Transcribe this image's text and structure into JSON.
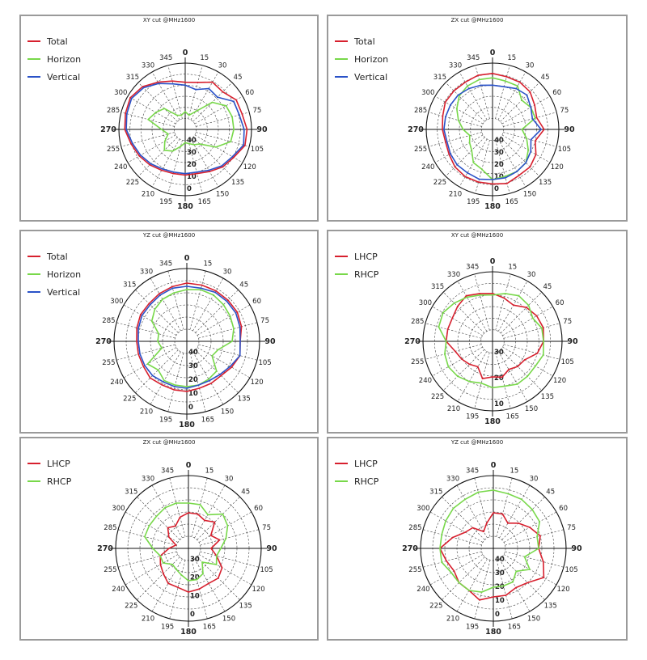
{
  "colors": {
    "red": "#d7202e",
    "green": "#78d84a",
    "blue": "#2a52c8",
    "grid": "#444444",
    "border": "#9a9a9a"
  },
  "chart_data": [
    {
      "type": "line",
      "title": "XY cut @MHz1600",
      "angular_ticks": [
        "0",
        "15",
        "30",
        "45",
        "60",
        "75",
        "90",
        "105",
        "120",
        "135",
        "150",
        "165",
        "180",
        "195",
        "210",
        "225",
        "240",
        "255",
        "270",
        "285",
        "300",
        "315",
        "330",
        "345"
      ],
      "radial_labels": [
        "40",
        "30",
        "20",
        "10",
        "0"
      ],
      "series": [
        {
          "name": "Total",
          "color": "#d7202e",
          "angles": [
            0,
            15,
            30,
            45,
            60,
            75,
            90,
            105,
            120,
            135,
            150,
            165,
            180,
            195,
            210,
            225,
            240,
            255,
            270,
            285,
            300,
            315,
            330,
            345
          ],
          "values": [
            32,
            33,
            37,
            36,
            40,
            40,
            42,
            42,
            38,
            36,
            33,
            31,
            31,
            31,
            32,
            34,
            36,
            38,
            41,
            42,
            43,
            41,
            37,
            34
          ]
        },
        {
          "name": "Horizon",
          "color": "#78d84a",
          "angles": [
            0,
            15,
            30,
            45,
            60,
            75,
            90,
            105,
            120,
            135,
            150,
            165,
            180,
            195,
            210,
            225,
            240,
            255,
            270,
            285,
            300,
            315,
            330,
            345
          ],
          "values": [
            12,
            10,
            14,
            26,
            32,
            33,
            33,
            32,
            24,
            14,
            12,
            10,
            9,
            12,
            17,
            20,
            16,
            12,
            16,
            26,
            23,
            20,
            11,
            10
          ]
        },
        {
          "name": "Vertical",
          "color": "#2a52c8",
          "angles": [
            0,
            15,
            30,
            45,
            60,
            75,
            90,
            105,
            120,
            135,
            150,
            165,
            180,
            195,
            210,
            225,
            240,
            255,
            270,
            285,
            300,
            315,
            330,
            345
          ],
          "values": [
            30,
            28,
            32,
            31,
            38,
            38,
            40,
            41,
            37,
            35,
            32,
            30,
            30,
            30,
            31,
            33,
            35,
            37,
            40,
            41,
            42,
            40,
            36,
            32
          ]
        }
      ]
    },
    {
      "type": "line",
      "title": "ZX cut @MHz1600",
      "angular_ticks": [
        "0",
        "15",
        "30",
        "45",
        "60",
        "75",
        "90",
        "105",
        "120",
        "135",
        "150",
        "165",
        "180",
        "195",
        "210",
        "225",
        "240",
        "255",
        "270",
        "285",
        "300",
        "315",
        "330",
        "345"
      ],
      "radial_labels": [
        "40",
        "30",
        "20",
        "10",
        "0"
      ],
      "series": [
        {
          "name": "Total",
          "color": "#d7202e",
          "angles": [
            0,
            15,
            30,
            45,
            60,
            75,
            90,
            105,
            120,
            135,
            150,
            165,
            180,
            195,
            210,
            225,
            240,
            255,
            270,
            285,
            300,
            315,
            330,
            345
          ],
          "values": [
            38,
            37,
            37,
            36,
            33,
            31,
            35,
            30,
            34,
            36,
            36,
            38,
            37,
            37,
            37,
            36,
            34,
            33,
            34,
            35,
            37,
            37,
            37,
            38
          ]
        },
        {
          "name": "Horizon",
          "color": "#78d84a",
          "angles": [
            0,
            15,
            30,
            45,
            60,
            75,
            90,
            105,
            120,
            135,
            150,
            165,
            180,
            195,
            210,
            225,
            240,
            255,
            270,
            285,
            300,
            315,
            330,
            345
          ],
          "values": [
            35,
            34,
            34,
            28,
            30,
            30,
            20,
            24,
            28,
            32,
            33,
            33,
            34,
            28,
            26,
            20,
            18,
            16,
            20,
            24,
            28,
            32,
            34,
            35
          ]
        },
        {
          "name": "Vertical",
          "color": "#2a52c8",
          "angles": [
            0,
            15,
            30,
            45,
            60,
            75,
            90,
            105,
            120,
            135,
            150,
            165,
            180,
            195,
            210,
            225,
            240,
            255,
            270,
            285,
            300,
            315,
            330,
            345
          ],
          "values": [
            30,
            30,
            32,
            33,
            30,
            28,
            33,
            27,
            30,
            32,
            33,
            34,
            34,
            35,
            34,
            34,
            33,
            32,
            33,
            33,
            33,
            33,
            32,
            31
          ]
        }
      ]
    },
    {
      "type": "line",
      "title": "YZ cut @MHz1600",
      "angular_ticks": [
        "0",
        "15",
        "30",
        "45",
        "60",
        "75",
        "90",
        "105",
        "120",
        "135",
        "150",
        "165",
        "180",
        "195",
        "210",
        "225",
        "240",
        "255",
        "270",
        "285",
        "300",
        "315",
        "330",
        "345"
      ],
      "radial_labels": [
        "40",
        "30",
        "20",
        "10",
        "0"
      ],
      "series": [
        {
          "name": "Total",
          "color": "#d7202e",
          "angles": [
            0,
            15,
            30,
            45,
            60,
            75,
            90,
            105,
            120,
            135,
            150,
            165,
            180,
            195,
            210,
            225,
            240,
            255,
            270,
            285,
            300,
            315,
            330,
            345
          ],
          "values": [
            36,
            36,
            36,
            36,
            36,
            35,
            33,
            34,
            32,
            30,
            30,
            30,
            31,
            31,
            31,
            32,
            31,
            31,
            31,
            32,
            33,
            33,
            34,
            35
          ]
        },
        {
          "name": "Horizon",
          "color": "#78d84a",
          "angles": [
            0,
            15,
            30,
            45,
            60,
            75,
            90,
            105,
            120,
            135,
            150,
            165,
            180,
            195,
            210,
            225,
            240,
            255,
            270,
            285,
            300,
            315,
            330,
            345
          ],
          "values": [
            32,
            33,
            33,
            32,
            31,
            30,
            28,
            20,
            18,
            26,
            27,
            28,
            28,
            28,
            28,
            25,
            28,
            16,
            18,
            18,
            25,
            28,
            30,
            31
          ]
        },
        {
          "name": "Vertical",
          "color": "#2a52c8",
          "angles": [
            0,
            15,
            30,
            45,
            60,
            75,
            90,
            105,
            120,
            135,
            150,
            165,
            180,
            195,
            210,
            225,
            240,
            255,
            270,
            285,
            300,
            315,
            330,
            345
          ],
          "values": [
            34,
            34,
            35,
            35,
            35,
            34,
            33,
            34,
            31,
            29,
            28,
            28,
            29,
            29,
            29,
            30,
            30,
            30,
            30,
            31,
            32,
            32,
            33,
            34
          ]
        }
      ]
    },
    {
      "type": "line",
      "title": "XY cut @MHz1600",
      "angular_ticks": [
        "0",
        "15",
        "30",
        "45",
        "60",
        "75",
        "90",
        "105",
        "120",
        "135",
        "150",
        "165",
        "180",
        "195",
        "210",
        "225",
        "240",
        "255",
        "270",
        "285",
        "300",
        "315",
        "330",
        "345"
      ],
      "radial_labels": [
        "30",
        "20",
        "10"
      ],
      "series": [
        {
          "name": "LHCP",
          "color": "#d7202e",
          "angles": [
            0,
            15,
            30,
            45,
            60,
            75,
            90,
            105,
            120,
            135,
            150,
            165,
            180,
            195,
            210,
            225,
            240,
            255,
            270,
            285,
            300,
            315,
            330,
            345
          ],
          "values": [
            31,
            29,
            27,
            31,
            33,
            34,
            33,
            30,
            24,
            23,
            21,
            24,
            23,
            25,
            19,
            21,
            23,
            25,
            30,
            30,
            30,
            32,
            34,
            32
          ]
        },
        {
          "name": "RHCP",
          "color": "#78d84a",
          "angles": [
            0,
            15,
            30,
            45,
            60,
            75,
            90,
            105,
            120,
            135,
            150,
            165,
            180,
            195,
            210,
            225,
            240,
            255,
            270,
            285,
            300,
            315,
            330,
            345
          ],
          "values": [
            30,
            32,
            34,
            33,
            30,
            33,
            33,
            34,
            32,
            32,
            32,
            30,
            30,
            28,
            30,
            32,
            33,
            32,
            30,
            36,
            37,
            35,
            33,
            31
          ]
        }
      ]
    },
    {
      "type": "line",
      "title": "ZX cut @MHz1600",
      "angular_ticks": [
        "0",
        "15",
        "30",
        "45",
        "60",
        "75",
        "90",
        "105",
        "120",
        "135",
        "150",
        "165",
        "180",
        "195",
        "210",
        "225",
        "240",
        "255",
        "270",
        "285",
        "300",
        "315",
        "330",
        "345"
      ],
      "radial_labels": [
        "30",
        "20",
        "10",
        "0"
      ],
      "series": [
        {
          "name": "LHCP",
          "color": "#d7202e",
          "angles": [
            0,
            15,
            30,
            45,
            60,
            75,
            90,
            105,
            120,
            135,
            150,
            165,
            180,
            195,
            210,
            225,
            240,
            255,
            270,
            285,
            300,
            315,
            330,
            345
          ],
          "values": [
            22,
            22,
            20,
            23,
            16,
            20,
            14,
            18,
            24,
            26,
            25,
            26,
            27,
            25,
            25,
            22,
            20,
            18,
            12,
            8,
            14,
            18,
            16,
            20
          ]
        },
        {
          "name": "RHCP",
          "color": "#78d84a",
          "angles": [
            0,
            15,
            30,
            45,
            60,
            75,
            90,
            105,
            120,
            135,
            150,
            165,
            180,
            195,
            210,
            225,
            240,
            255,
            270,
            285,
            300,
            315,
            330,
            345
          ],
          "values": [
            28,
            28,
            24,
            30,
            28,
            24,
            20,
            18,
            20,
            12,
            18,
            20,
            20,
            17,
            15,
            14,
            18,
            18,
            22,
            28,
            28,
            28,
            29,
            29
          ]
        }
      ]
    },
    {
      "type": "line",
      "title": "YZ cut @MHz1600",
      "angular_ticks": [
        "0",
        "15",
        "30",
        "45",
        "60",
        "75",
        "90",
        "105",
        "120",
        "135",
        "150",
        "165",
        "180",
        "195",
        "210",
        "225",
        "240",
        "255",
        "270",
        "285",
        "300",
        "315",
        "330",
        "345"
      ],
      "radial_labels": [
        "40",
        "30",
        "20",
        "10",
        "0"
      ],
      "series": [
        {
          "name": "LHCP",
          "color": "#d7202e",
          "angles": [
            0,
            15,
            30,
            45,
            60,
            75,
            90,
            105,
            120,
            135,
            150,
            165,
            180,
            195,
            210,
            225,
            240,
            255,
            270,
            285,
            300,
            315,
            330,
            345
          ],
          "values": [
            22,
            22,
            18,
            22,
            26,
            30,
            28,
            32,
            36,
            30,
            28,
            30,
            30,
            33,
            30,
            30,
            28,
            30,
            33,
            26,
            20,
            18,
            12,
            16
          ]
        },
        {
          "name": "RHCP",
          "color": "#78d84a",
          "angles": [
            0,
            15,
            30,
            45,
            60,
            75,
            90,
            105,
            120,
            135,
            150,
            165,
            180,
            195,
            210,
            225,
            240,
            255,
            270,
            285,
            300,
            315,
            330,
            345
          ],
          "values": [
            36,
            35,
            35,
            34,
            33,
            28,
            28,
            20,
            26,
            20,
            24,
            24,
            24,
            28,
            30,
            30,
            30,
            33,
            33,
            33,
            34,
            35,
            35,
            36
          ]
        }
      ]
    }
  ]
}
